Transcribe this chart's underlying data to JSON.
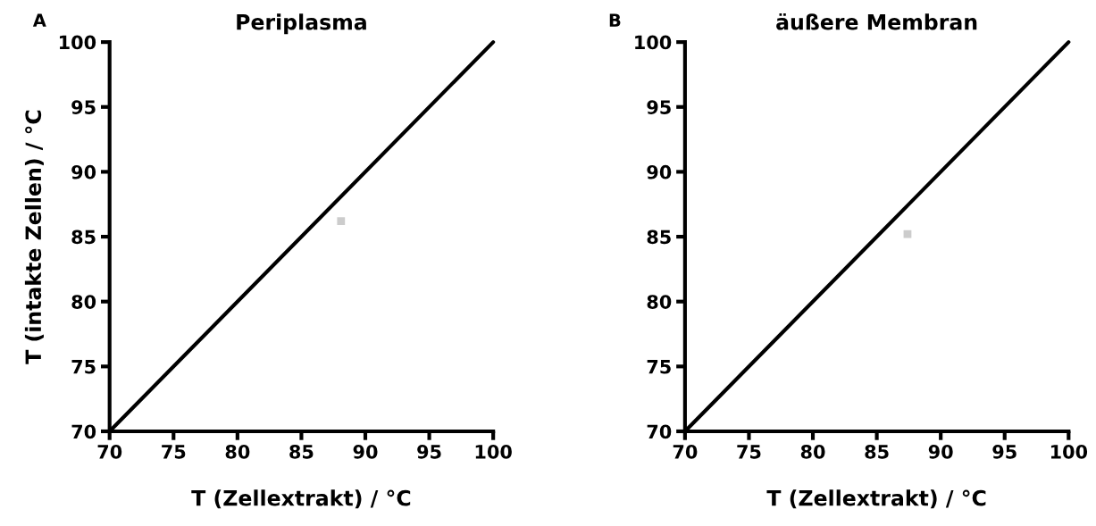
{
  "chart_data": [
    {
      "type": "line",
      "title": "Periplasma",
      "xlabel": "T (Zellextrakt) / °C",
      "ylabel": "T (intakte Zellen) / °C",
      "annotations": [
        "A"
      ],
      "xlim": [
        70,
        100
      ],
      "ylim": [
        70,
        100
      ],
      "xticks": [
        70,
        75,
        80,
        85,
        90,
        95,
        100
      ],
      "yticks": [
        70,
        75,
        80,
        85,
        90,
        95,
        100
      ],
      "grid": false,
      "legend": false,
      "series": [
        {
          "color": "#000000",
          "x": [
            70,
            100
          ],
          "values": [
            70,
            100
          ]
        },
        {
          "type": "scatter",
          "color": "#cccccc",
          "marker": "square",
          "x": [
            88.1
          ],
          "values": [
            86.2
          ]
        }
      ]
    },
    {
      "type": "line",
      "title": "äußere Membran",
      "xlabel": "T (Zellextrakt) / °C",
      "annotations": [
        "B"
      ],
      "xlim": [
        70,
        100
      ],
      "ylim": [
        70,
        100
      ],
      "xticks": [
        70,
        75,
        80,
        85,
        90,
        95,
        100
      ],
      "yticks": [
        70,
        75,
        80,
        85,
        90,
        95,
        100
      ],
      "grid": false,
      "legend": false,
      "series": [
        {
          "color": "#000000",
          "x": [
            70,
            100
          ],
          "values": [
            70,
            100
          ]
        },
        {
          "type": "scatter",
          "color": "#cccccc",
          "marker": "square",
          "x": [
            87.4
          ],
          "values": [
            85.2
          ]
        }
      ]
    }
  ]
}
